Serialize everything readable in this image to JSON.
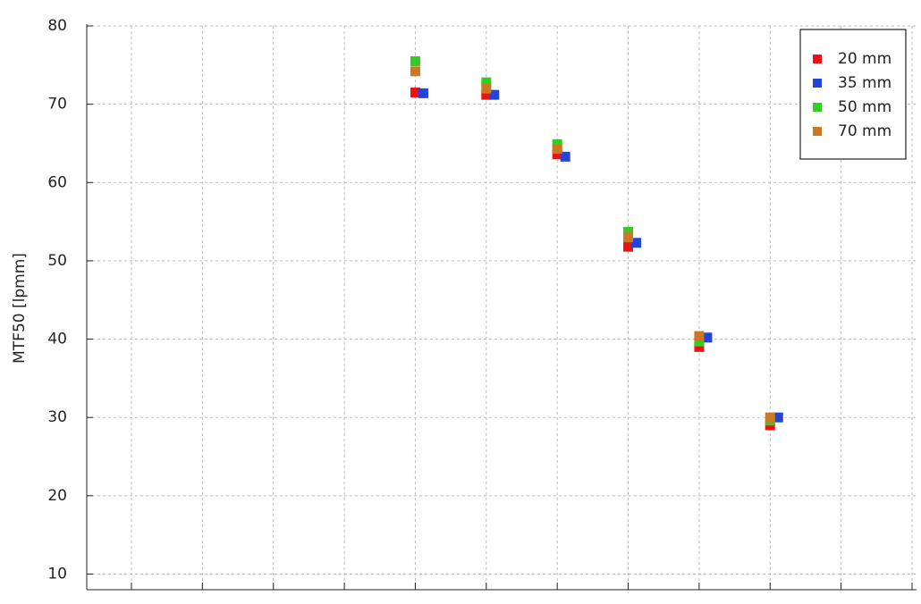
{
  "chart_data": {
    "type": "scatter",
    "y_label": "MTF50 [lpmm]",
    "categories": [
      null,
      null,
      null,
      null,
      null,
      null,
      null,
      null,
      null,
      null,
      null,
      null
    ],
    "series": [
      {
        "name": "20 mm",
        "color": "#ee1111",
        "values": [
          null,
          null,
          null,
          null,
          71.5,
          71.2,
          63.6,
          51.8,
          39.0,
          29.0,
          null,
          null
        ]
      },
      {
        "name": "35 mm",
        "color": "#2244dd",
        "values": [
          null,
          null,
          null,
          null,
          71.4,
          71.2,
          63.3,
          52.3,
          40.2,
          30.0,
          null,
          null
        ]
      },
      {
        "name": "50 mm",
        "color": "#33cc22",
        "values": [
          null,
          null,
          null,
          null,
          75.5,
          72.8,
          64.9,
          53.7,
          39.7,
          29.6,
          null,
          null
        ]
      },
      {
        "name": "70 mm",
        "color": "#cc7722",
        "values": [
          null,
          null,
          null,
          null,
          74.2,
          72.0,
          64.3,
          53.0,
          40.4,
          30.0,
          null,
          null
        ]
      }
    ],
    "ylim": [
      8,
      80
    ],
    "yticks": [
      10,
      20,
      30,
      40,
      50,
      60,
      70,
      80
    ],
    "grid": true,
    "legend": "upper right"
  }
}
